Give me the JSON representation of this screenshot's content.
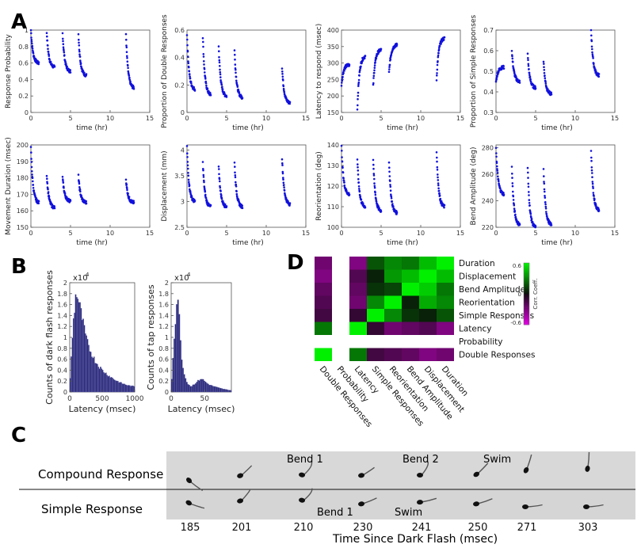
{
  "panels": {
    "a": "A",
    "b": "B",
    "c": "C",
    "d": "D"
  },
  "panelA": {
    "plots": [
      {
        "ylabel": "Response Probability",
        "xlabel": "time (hr)",
        "yticks": [
          "0",
          "0.2",
          "0.4",
          "0.6",
          "0.8",
          "1"
        ],
        "ymin": 0,
        "ymax": 1,
        "xticks": [
          "0",
          "5",
          "10",
          "15"
        ]
      },
      {
        "ylabel": "Proportion of Double Responses",
        "xlabel": "time (hr)",
        "yticks": [
          "0",
          "0.2",
          "0.4",
          "0.6"
        ],
        "ymin": 0,
        "ymax": 0.6,
        "xticks": [
          "0",
          "5",
          "10",
          "15"
        ]
      },
      {
        "ylabel": "Latency to respond (msec)",
        "xlabel": "time (hr)",
        "yticks": [
          "150",
          "200",
          "250",
          "300",
          "350",
          "400"
        ],
        "ymin": 150,
        "ymax": 400,
        "xticks": [
          "0",
          "5",
          "10",
          "15"
        ]
      },
      {
        "ylabel": "Proportion of Simple Responses",
        "xlabel": "time (hr)",
        "yticks": [
          "0.3",
          "0.4",
          "0.5",
          "0.6",
          "0.7"
        ],
        "ymin": 0.3,
        "ymax": 0.7,
        "xticks": [
          "0",
          "5",
          "10",
          "15"
        ]
      },
      {
        "ylabel": "Movement Duration (msec)",
        "xlabel": "time (hr)",
        "yticks": [
          "150",
          "160",
          "170",
          "180",
          "190",
          "200"
        ],
        "ymin": 150,
        "ymax": 200,
        "xticks": [
          "0",
          "5",
          "10",
          "15"
        ]
      },
      {
        "ylabel": "Displacement (mm)",
        "xlabel": "time (hr)",
        "yticks": [
          "2.5",
          "3",
          "3.5",
          "4"
        ],
        "ymin": 2.5,
        "ymax": 4.1,
        "xticks": [
          "0",
          "5",
          "10",
          "15"
        ]
      },
      {
        "ylabel": "Reorientation (deg)",
        "xlabel": "time (hr)",
        "yticks": [
          "100",
          "110",
          "120",
          "130",
          "140"
        ],
        "ymin": 100,
        "ymax": 140,
        "xticks": [
          "0",
          "5",
          "10",
          "15"
        ]
      },
      {
        "ylabel": "Bend Amplitude (deg)",
        "xlabel": "time (hr)",
        "yticks": [
          "220",
          "240",
          "260",
          "280"
        ],
        "ymin": 220,
        "ymax": 282,
        "xticks": [
          "0",
          "5",
          "10",
          "15"
        ]
      }
    ]
  },
  "panelB": {
    "left": {
      "ylabel": "Counts of dark flash responses",
      "xlabel": "Latency (msec)",
      "exponent": "x10",
      "exponent_power": "4",
      "yticks": [
        "0",
        "0.2",
        "0.4",
        "0.6",
        "0.8",
        "1",
        "1.2",
        "1.4",
        "1.6",
        "1.8",
        "2"
      ],
      "xticks": [
        "0",
        "500",
        "1000"
      ]
    },
    "right": {
      "ylabel": "Counts of tap responses",
      "xlabel": "Latency (msec)",
      "exponent": "x10",
      "exponent_power": "4",
      "yticks": [
        "0",
        "0.2",
        "0.4",
        "0.6",
        "0.8",
        "1",
        "1.2",
        "1.4",
        "1.6",
        "1.8",
        "2"
      ],
      "xticks": [
        "0",
        "50"
      ]
    }
  },
  "panelD": {
    "row_labels": [
      "Duration",
      "Displacement",
      "Bend Amplitude",
      "Reorientation",
      "Simple Responses",
      "Latency",
      "Probability",
      "Double Responses"
    ],
    "col_labels": [
      "Double Responses",
      "Probability",
      "Latency",
      "Simple Responses",
      "Reorientation",
      "Bend Amplitude",
      "Displacement",
      "Duration"
    ],
    "colorbar": {
      "label": "Corr. Coeff.",
      "max": "0.6",
      "mid": "0",
      "min": "-0.6"
    }
  },
  "panelC": {
    "row1_label": "Compound Response",
    "row2_label": "Simple Response",
    "row1_annotations": [
      "Bend 1",
      "Bend 2",
      "Swim"
    ],
    "row2_annotations": [
      "Bend 1",
      "Swim"
    ],
    "times": [
      "185",
      "201",
      "210",
      "230",
      "241",
      "250",
      "271",
      "303"
    ],
    "xlabel": "Time Since Dark Flash (msec)"
  },
  "chart_data": [
    {
      "type": "scatter",
      "title": "",
      "xlabel": "time (hr)",
      "ylabel": "Response Probability",
      "xlim": [
        0,
        15
      ],
      "ylim": [
        0,
        1
      ],
      "blocks": [
        {
          "x": [
            0,
            1
          ],
          "y": [
            1.0,
            0.6
          ]
        },
        {
          "x": [
            2,
            3
          ],
          "y": [
            0.97,
            0.55
          ]
        },
        {
          "x": [
            4,
            5
          ],
          "y": [
            0.96,
            0.5
          ]
        },
        {
          "x": [
            6,
            7
          ],
          "y": [
            0.95,
            0.45
          ]
        },
        {
          "x": [
            12,
            13
          ],
          "y": [
            0.95,
            0.3
          ]
        }
      ]
    },
    {
      "type": "scatter",
      "title": "",
      "xlabel": "time (hr)",
      "ylabel": "Proportion of Double Responses",
      "xlim": [
        0,
        15
      ],
      "ylim": [
        0,
        0.6
      ],
      "blocks": [
        {
          "x": [
            0,
            1
          ],
          "y": [
            0.57,
            0.17
          ]
        },
        {
          "x": [
            2,
            3
          ],
          "y": [
            0.55,
            0.13
          ]
        },
        {
          "x": [
            4,
            5
          ],
          "y": [
            0.48,
            0.12
          ]
        },
        {
          "x": [
            6,
            7
          ],
          "y": [
            0.45,
            0.11
          ]
        },
        {
          "x": [
            12,
            13
          ],
          "y": [
            0.33,
            0.07
          ]
        }
      ]
    },
    {
      "type": "scatter",
      "title": "",
      "xlabel": "time (hr)",
      "ylabel": "Latency to respond (msec)",
      "xlim": [
        0,
        15
      ],
      "ylim": [
        150,
        400
      ],
      "blocks": [
        {
          "x": [
            0,
            1
          ],
          "y": [
            235,
            295
          ]
        },
        {
          "x": [
            2,
            3
          ],
          "y": [
            160,
            320
          ]
        },
        {
          "x": [
            4,
            5
          ],
          "y": [
            230,
            340
          ]
        },
        {
          "x": [
            6,
            7
          ],
          "y": [
            270,
            355
          ]
        },
        {
          "x": [
            12,
            13
          ],
          "y": [
            250,
            375
          ]
        }
      ]
    },
    {
      "type": "scatter",
      "title": "",
      "xlabel": "time (hr)",
      "ylabel": "Proportion of Simple Responses",
      "xlim": [
        0,
        15
      ],
      "ylim": [
        0.3,
        0.7
      ],
      "blocks": [
        {
          "x": [
            0,
            1
          ],
          "y": [
            0.45,
            0.52
          ]
        },
        {
          "x": [
            2,
            3
          ],
          "y": [
            0.6,
            0.45
          ]
        },
        {
          "x": [
            4,
            5
          ],
          "y": [
            0.58,
            0.42
          ]
        },
        {
          "x": [
            6,
            7
          ],
          "y": [
            0.55,
            0.39
          ]
        },
        {
          "x": [
            12,
            13
          ],
          "y": [
            0.7,
            0.48
          ]
        }
      ]
    },
    {
      "type": "scatter",
      "title": "",
      "xlabel": "time (hr)",
      "ylabel": "Movement Duration (msec)",
      "xlim": [
        0,
        15
      ],
      "ylim": [
        150,
        200
      ],
      "blocks": [
        {
          "x": [
            0,
            1
          ],
          "y": [
            198,
            165
          ]
        },
        {
          "x": [
            2,
            3
          ],
          "y": [
            182,
            162
          ]
        },
        {
          "x": [
            4,
            5
          ],
          "y": [
            180,
            166
          ]
        },
        {
          "x": [
            6,
            7
          ],
          "y": [
            181,
            165
          ]
        },
        {
          "x": [
            12,
            13
          ],
          "y": [
            179,
            165
          ]
        }
      ]
    },
    {
      "type": "scatter",
      "title": "",
      "xlabel": "time (hr)",
      "ylabel": "Displacement (mm)",
      "xlim": [
        0,
        15
      ],
      "ylim": [
        2.5,
        4.1
      ],
      "blocks": [
        {
          "x": [
            0,
            1
          ],
          "y": [
            4.05,
            3.0
          ]
        },
        {
          "x": [
            2,
            3
          ],
          "y": [
            3.75,
            2.9
          ]
        },
        {
          "x": [
            4,
            5
          ],
          "y": [
            3.7,
            2.9
          ]
        },
        {
          "x": [
            6,
            7
          ],
          "y": [
            3.75,
            2.9
          ]
        },
        {
          "x": [
            12,
            13
          ],
          "y": [
            3.85,
            2.95
          ]
        }
      ]
    },
    {
      "type": "scatter",
      "title": "",
      "xlabel": "time (hr)",
      "ylabel": "Reorientation (deg)",
      "xlim": [
        0,
        15
      ],
      "ylim": [
        100,
        140
      ],
      "blocks": [
        {
          "x": [
            0,
            1
          ],
          "y": [
            139,
            116
          ]
        },
        {
          "x": [
            2,
            3
          ],
          "y": [
            133,
            110
          ]
        },
        {
          "x": [
            4,
            5
          ],
          "y": [
            133,
            108
          ]
        },
        {
          "x": [
            6,
            7
          ],
          "y": [
            132,
            107
          ]
        },
        {
          "x": [
            12,
            13
          ],
          "y": [
            137,
            110
          ]
        }
      ]
    },
    {
      "type": "scatter",
      "title": "",
      "xlabel": "time (hr)",
      "ylabel": "Bend Amplitude (deg)",
      "xlim": [
        0,
        15
      ],
      "ylim": [
        220,
        282
      ],
      "blocks": [
        {
          "x": [
            0,
            1
          ],
          "y": [
            280,
            245
          ]
        },
        {
          "x": [
            2,
            3
          ],
          "y": [
            265,
            222
          ]
        },
        {
          "x": [
            4,
            5
          ],
          "y": [
            265,
            220
          ]
        },
        {
          "x": [
            6,
            7
          ],
          "y": [
            263,
            222
          ]
        },
        {
          "x": [
            12,
            13
          ],
          "y": [
            278,
            233
          ]
        }
      ]
    },
    {
      "type": "bar",
      "title": "",
      "xlabel": "Latency (msec)",
      "ylabel": "Counts of dark flash responses",
      "xlim": [
        0,
        1000
      ],
      "ylim": [
        0,
        2
      ],
      "yunit": "x10^4",
      "x": [
        0,
        50,
        100,
        150,
        200,
        250,
        300,
        400,
        500,
        600,
        700,
        800,
        900,
        1000
      ],
      "values": [
        0.05,
        1.2,
        1.85,
        1.6,
        1.3,
        1.0,
        0.8,
        0.55,
        0.4,
        0.3,
        0.22,
        0.16,
        0.12,
        0.1
      ]
    },
    {
      "type": "bar",
      "title": "",
      "xlabel": "Latency (msec)",
      "ylabel": "Counts of tap responses",
      "xlim": [
        0,
        90
      ],
      "ylim": [
        0,
        2
      ],
      "yunit": "x10^4",
      "x": [
        0,
        5,
        10,
        15,
        20,
        25,
        30,
        35,
        40,
        45,
        50,
        55,
        60,
        70,
        80,
        90
      ],
      "values": [
        0.05,
        1.1,
        1.85,
        0.7,
        0.3,
        0.15,
        0.1,
        0.15,
        0.2,
        0.25,
        0.2,
        0.15,
        0.12,
        0.08,
        0.05,
        0.03
      ]
    },
    {
      "type": "heatmap",
      "title": "",
      "colorbar_label": "Corr. Coeff.",
      "vmin": -0.6,
      "vmax": 0.6,
      "rows": [
        "Duration",
        "Displacement",
        "Bend Amplitude",
        "Reorientation",
        "Simple Responses",
        "Latency",
        "Probability",
        "Double Responses"
      ],
      "cols": [
        "Double Responses",
        "Probability",
        "Latency",
        "Simple Responses",
        "Reorientation",
        "Bend Amplitude",
        "Displacement",
        "Duration"
      ],
      "values": [
        [
          -0.3,
          null,
          -0.35,
          0.2,
          0.35,
          0.3,
          0.5,
          0.65
        ],
        [
          -0.35,
          null,
          -0.2,
          0.05,
          0.4,
          0.5,
          0.65,
          0.5
        ],
        [
          -0.25,
          null,
          -0.25,
          0.1,
          0.15,
          0.65,
          0.55,
          0.3
        ],
        [
          -0.2,
          null,
          -0.3,
          0.35,
          0.65,
          0.05,
          0.45,
          0.35
        ],
        [
          -0.15,
          null,
          -0.1,
          0.65,
          0.35,
          0.1,
          0.05,
          0.2
        ],
        [
          0.3,
          null,
          0.65,
          -0.1,
          -0.3,
          -0.25,
          -0.2,
          -0.35
        ],
        [
          null,
          null,
          null,
          null,
          null,
          null,
          null,
          null
        ],
        [
          0.65,
          null,
          0.3,
          -0.15,
          -0.2,
          -0.25,
          -0.35,
          -0.3
        ]
      ]
    }
  ]
}
